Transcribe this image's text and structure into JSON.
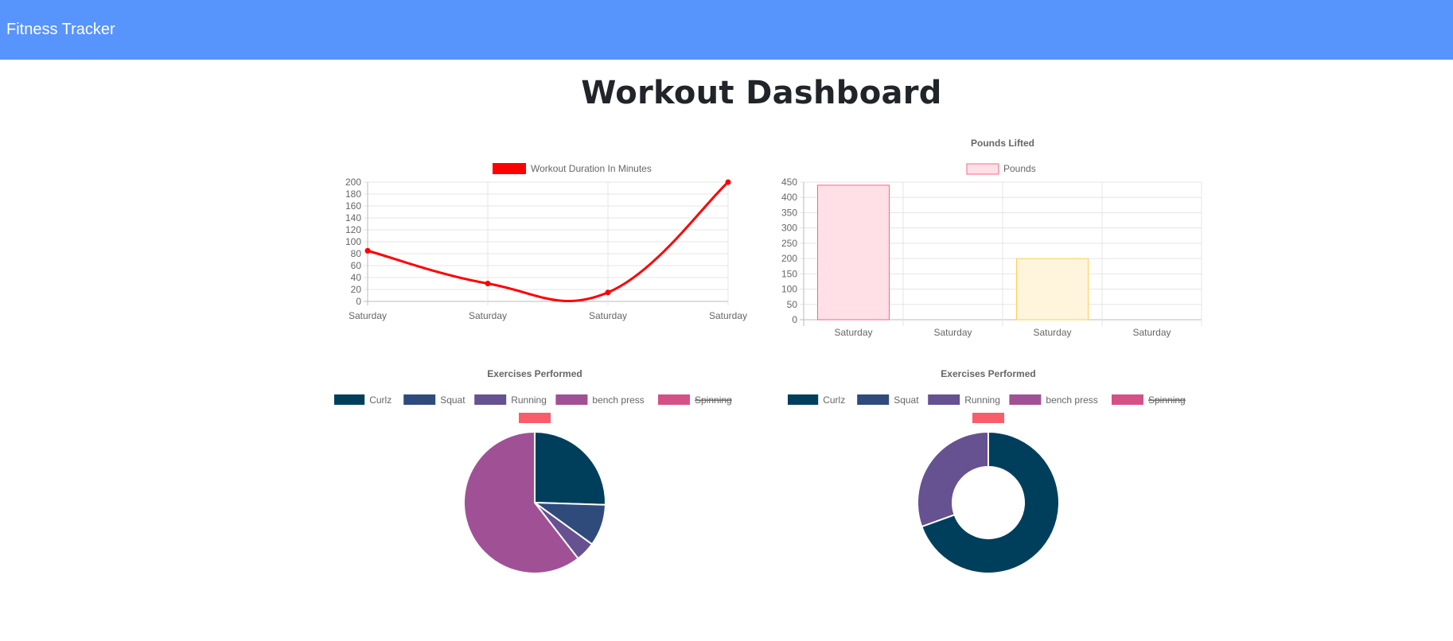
{
  "navbar": {
    "brand": "Fitness Tracker"
  },
  "page": {
    "title": "Workout Dashboard"
  },
  "colors": {
    "navbar": "#5794fc",
    "line": "#ff0000"
  },
  "chart_data": [
    {
      "type": "line",
      "title": "",
      "legend": {
        "position": "top",
        "label": "Workout Duration In Minutes",
        "color": "#ff0000"
      },
      "categories": [
        "Saturday",
        "Saturday",
        "Saturday",
        "Saturday"
      ],
      "series": [
        {
          "name": "Workout Duration In Minutes",
          "values": [
            85,
            30,
            15,
            200
          ],
          "color": "#ff0000"
        }
      ],
      "ylim": [
        0,
        200
      ],
      "yticks": [
        0,
        20,
        40,
        60,
        80,
        100,
        120,
        140,
        160,
        180,
        200
      ],
      "grid": true
    },
    {
      "type": "bar",
      "title": "Pounds Lifted",
      "legend": {
        "position": "top",
        "label": "Pounds",
        "color": "#ffe0e6",
        "border": "#ff6384"
      },
      "categories": [
        "Saturday",
        "Saturday",
        "Saturday",
        "Saturday"
      ],
      "series": [
        {
          "name": "Pounds",
          "values": [
            440,
            0,
            200,
            0
          ]
        }
      ],
      "bar_fill": [
        "#ffe0e6",
        "#dbecf8",
        "#fff5dd",
        "#dbf2f2"
      ],
      "bar_border": [
        "#ff6384",
        "#36a2eb",
        "#ffce56",
        "#4bc0c0"
      ],
      "ylim": [
        0,
        450
      ],
      "yticks": [
        0,
        50,
        100,
        150,
        200,
        250,
        300,
        350,
        400,
        450
      ],
      "grid": true
    },
    {
      "type": "pie",
      "title": "Exercises Performed",
      "legend": {
        "position": "top",
        "items": [
          {
            "label": "Curlz",
            "color": "#003f5c",
            "hidden": false
          },
          {
            "label": "Squat",
            "color": "#2f4b7c",
            "hidden": false
          },
          {
            "label": "Running",
            "color": "#665191",
            "hidden": false
          },
          {
            "label": "bench press",
            "color": "#a05195",
            "hidden": false
          },
          {
            "label": "Spinning",
            "color": "#d45087",
            "hidden": true
          },
          {
            "label": "",
            "color": "#f95d6a",
            "hidden": false
          }
        ]
      },
      "slices": [
        {
          "label": "Curlz",
          "value": 25.5,
          "color": "#003f5c"
        },
        {
          "label": "Squat",
          "value": 9.5,
          "color": "#2f4b7c"
        },
        {
          "label": "Running",
          "value": 4.5,
          "color": "#665191"
        },
        {
          "label": "bench press",
          "value": 60.5,
          "color": "#a05195"
        }
      ]
    },
    {
      "type": "doughnut",
      "title": "Exercises Performed",
      "legend": {
        "position": "top",
        "items": [
          {
            "label": "Curlz",
            "color": "#003f5c",
            "hidden": false
          },
          {
            "label": "Squat",
            "color": "#2f4b7c",
            "hidden": false
          },
          {
            "label": "Running",
            "color": "#665191",
            "hidden": false
          },
          {
            "label": "bench press",
            "color": "#a05195",
            "hidden": false
          },
          {
            "label": "Spinning",
            "color": "#d45087",
            "hidden": true
          },
          {
            "label": "",
            "color": "#f95d6a",
            "hidden": false
          }
        ]
      },
      "slices": [
        {
          "label": "Curlz",
          "value": 69.5,
          "color": "#003f5c"
        },
        {
          "label": "Running",
          "value": 30.5,
          "color": "#665191"
        }
      ]
    }
  ]
}
